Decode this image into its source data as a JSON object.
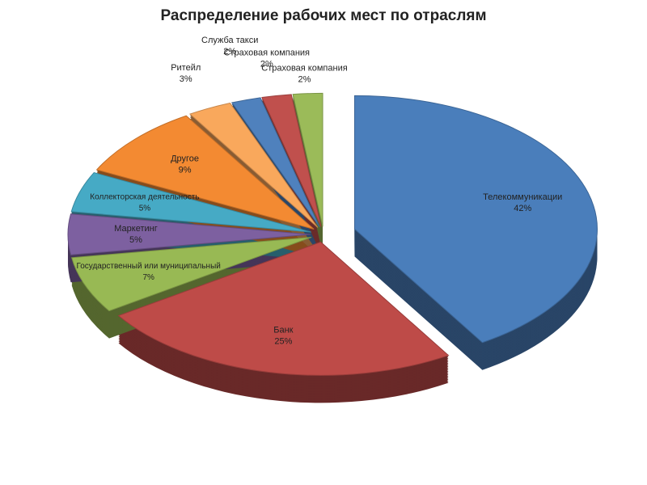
{
  "chart_data": {
    "type": "pie",
    "title": "Распределение рабочих мест по отраслям",
    "categories": [
      "Телекоммуникации",
      "Банк",
      "Государственный или муниципальный",
      "Маркетинг",
      "Коллекторская деятельность",
      "Другое",
      "Ритейл",
      "Служба такси",
      "Страховая компания",
      "Страховая компания"
    ],
    "values": [
      42,
      25,
      7,
      5,
      5,
      9,
      3,
      2,
      2,
      2
    ],
    "value_labels": [
      "42%",
      "25%",
      "7%",
      "5%",
      "5%",
      "9%",
      "3%",
      "2%",
      "2%",
      "2%"
    ],
    "colors": [
      "#4a7ebb",
      "#be4b48",
      "#98b954",
      "#7d60a0",
      "#46aac5",
      "#f38a32",
      "#f9a85c",
      "#4f81bd",
      "#c0504d",
      "#9bbb59"
    ]
  }
}
